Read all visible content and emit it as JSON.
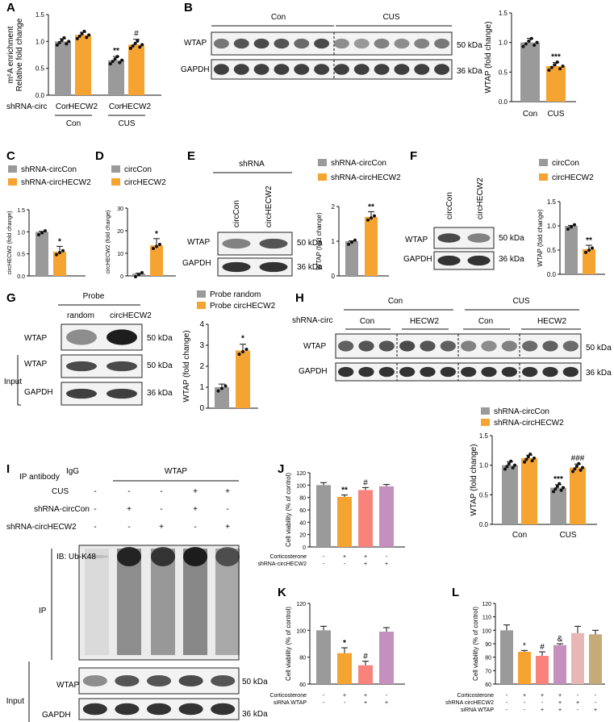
{
  "colors": {
    "grey": "#9a9a9a",
    "orange": "#f6a431",
    "salmon": "#f8837d",
    "purple": "#c58fbe",
    "pink": "#e7b7b6",
    "khaki": "#c4ab78"
  },
  "panels": {
    "A": {
      "letter": "A",
      "ylabel": "m⁶A enrichment\nRelative fold change",
      "row_label": "shRNA-circ",
      "bar_labels": [
        "Con",
        "HECW2",
        "Con",
        "HECW2"
      ],
      "group_labels": [
        "Con",
        "CUS"
      ],
      "sig": [
        "**",
        "#"
      ],
      "yticks": [
        "0.0",
        "0.5",
        "1.0",
        "1.5"
      ]
    },
    "B": {
      "letter": "B",
      "group_labels": [
        "Con",
        "CUS"
      ],
      "rows": [
        "WTAP",
        "GAPDH"
      ],
      "kda": [
        "50 kDa",
        "36 kDa"
      ],
      "ylabel": "WTAP (fold change)",
      "bar_labels": [
        "Con",
        "CUS"
      ],
      "sig": "***",
      "yticks": [
        "0.0",
        "0.5",
        "1.0",
        "1.5"
      ]
    },
    "C": {
      "letter": "C",
      "legend": [
        "shRNA-circCon",
        "shRNA-circHECW2"
      ],
      "ylabel": "circHECW2 (fold change)",
      "sig": "*",
      "yticks": [
        "0.0",
        "0.5",
        "1.0",
        "1.5"
      ]
    },
    "D": {
      "letter": "D",
      "legend": [
        "circCon",
        "circHECW2"
      ],
      "ylabel": "circHECW2 (fold change)",
      "sig": "*",
      "yticks": [
        "0",
        "10",
        "20",
        "30"
      ]
    },
    "E": {
      "letter": "E",
      "header": "shRNA",
      "lanes": [
        "circCon",
        "circHECW2"
      ],
      "rows": [
        "WTAP",
        "GAPDH"
      ],
      "kda": [
        "50 kDa",
        "36 kDa"
      ],
      "legend": [
        "shRNA-circCon",
        "shRNA-circHECW2"
      ],
      "ylabel": "WTAP (fold change)",
      "sig": "**",
      "yticks": [
        "0",
        "1",
        "2"
      ]
    },
    "F": {
      "letter": "F",
      "lanes": [
        "circCon",
        "circHECW2"
      ],
      "rows": [
        "WTAP",
        "GAPDH"
      ],
      "kda": [
        "50 kDa",
        "36 kDa"
      ],
      "legend": [
        "circCon",
        "circHECW2"
      ],
      "ylabel": "WTAP (fold change)",
      "sig": "**",
      "yticks": [
        "0.0",
        "0.5",
        "1.0",
        "1.5"
      ]
    },
    "G": {
      "letter": "G",
      "header": "Probe",
      "lanes": [
        "random",
        "circHECW2"
      ],
      "rows": [
        "WTAP",
        "WTAP",
        "GAPDH"
      ],
      "input_label": "Input",
      "kda": [
        "50 kDa",
        "50 kDa",
        "36 kDa"
      ],
      "legend": [
        "Probe random",
        "Probe circHECW2"
      ],
      "ylabel": "WTAP (fold change)",
      "sig": "*",
      "yticks": [
        "0",
        "1",
        "2",
        "3",
        "4"
      ]
    },
    "H": {
      "letter": "H",
      "row_label": "shRNA-circ",
      "group_labels": [
        "Con",
        "CUS"
      ],
      "lane_labels": [
        "Con",
        "HECW2",
        "Con",
        "HECW2"
      ],
      "rows": [
        "WTAP",
        "GAPDH"
      ],
      "kda": [
        "50 kDa",
        "36 kDa"
      ],
      "legend": [
        "shRNA-circCon",
        "shRNA-circHECW2"
      ],
      "ylabel": "WTAP (fold change)",
      "xlabels": [
        "Con",
        "CUS"
      ],
      "sig": [
        "***",
        "###"
      ],
      "yticks": [
        "0.0",
        "0.5",
        "1.0",
        "1.5"
      ]
    },
    "I": {
      "letter": "I",
      "ip_antibody": "IP antibody",
      "cols": [
        "IgG",
        "WTAP"
      ],
      "conditions": [
        {
          "label": "CUS",
          "signs": [
            "-",
            "-",
            "-",
            "+",
            "+"
          ]
        },
        {
          "label": "shRNA-circCon",
          "signs": [
            "-",
            "+",
            "-",
            "+",
            "-"
          ]
        },
        {
          "label": "shRNA-circHECW2",
          "signs": [
            "-",
            "-",
            "+",
            "-",
            "+"
          ]
        }
      ],
      "ib": "IB: Ub-K48",
      "ip": "IP",
      "input": "Input",
      "rows": [
        "WTAP",
        "GAPDH"
      ],
      "kda": [
        "50 kDa",
        "36 kDa"
      ]
    },
    "J": {
      "letter": "J",
      "ylabel": "Cell viability (% of control)",
      "yticks": [
        "0",
        "20",
        "40",
        "60",
        "80",
        "100",
        "120"
      ],
      "sig": [
        "**",
        "#"
      ],
      "treatments": [
        {
          "label": "Corticosterone",
          "signs": [
            "-",
            "+",
            "+",
            "-"
          ]
        },
        {
          "label": "shRNA-circHECW2",
          "signs": [
            "-",
            "-",
            "+",
            "+"
          ]
        }
      ]
    },
    "K": {
      "letter": "K",
      "ylabel": "Cell viability (% of control)",
      "yticks": [
        "60",
        "80",
        "100",
        "120"
      ],
      "sig": [
        "*",
        "#"
      ],
      "treatments": [
        {
          "label": "Corticosterone",
          "signs": [
            "-",
            "+",
            "+",
            "-"
          ]
        },
        {
          "label": "siRNA WTAP",
          "signs": [
            "-",
            "-",
            "+",
            "+"
          ]
        }
      ]
    },
    "L": {
      "letter": "L",
      "ylabel": "Cell viability (% of control)",
      "yticks": [
        "60",
        "70",
        "80",
        "90",
        "100",
        "110",
        "120"
      ],
      "sig": [
        "*",
        "#",
        "&"
      ],
      "treatments": [
        {
          "label": "Corticosterone",
          "signs": [
            "-",
            "+",
            "+",
            "+",
            "-",
            "-"
          ]
        },
        {
          "label": "shRNA circHECW2",
          "signs": [
            "-",
            "-",
            "-",
            "+",
            "+",
            "-"
          ]
        },
        {
          "label": "siRNA WTAP",
          "signs": [
            "-",
            "-",
            "+",
            "+",
            "-",
            "+"
          ]
        }
      ]
    }
  },
  "chart_data": [
    {
      "panel": "A",
      "type": "bar",
      "categories": [
        "Con",
        "HECW2",
        "Con",
        "HECW2"
      ],
      "values": [
        1.0,
        1.12,
        0.65,
        0.94
      ],
      "ylim": [
        0,
        1.5
      ]
    },
    {
      "panel": "B",
      "type": "bar",
      "categories": [
        "Con",
        "CUS"
      ],
      "values": [
        1.0,
        0.6
      ],
      "ylim": [
        0,
        1.5
      ]
    },
    {
      "panel": "C",
      "type": "bar",
      "values": [
        1.0,
        0.55
      ],
      "ylim": [
        0,
        1.5
      ]
    },
    {
      "panel": "D",
      "type": "bar",
      "values": [
        1.0,
        13.5
      ],
      "ylim": [
        0,
        30
      ]
    },
    {
      "panel": "E",
      "type": "bar",
      "values": [
        1.0,
        1.7
      ],
      "ylim": [
        0,
        2
      ]
    },
    {
      "panel": "F",
      "type": "bar",
      "values": [
        1.0,
        0.52
      ],
      "ylim": [
        0,
        1.5
      ]
    },
    {
      "panel": "G",
      "type": "bar",
      "values": [
        1.0,
        2.75
      ],
      "ylim": [
        0,
        4
      ]
    },
    {
      "panel": "H",
      "type": "bar",
      "categories": [
        "Con",
        "CUS"
      ],
      "series": [
        {
          "name": "shRNA-circCon",
          "values": [
            1.0,
            0.62
          ]
        },
        {
          "name": "shRNA-circHECW2",
          "values": [
            1.12,
            0.96
          ]
        }
      ],
      "ylim": [
        0,
        1.5
      ]
    },
    {
      "panel": "J",
      "type": "bar",
      "values": [
        100,
        81,
        92,
        98
      ],
      "ylim": [
        0,
        120
      ]
    },
    {
      "panel": "K",
      "type": "bar",
      "values": [
        100,
        83,
        74,
        99
      ],
      "ylim": [
        60,
        120
      ]
    },
    {
      "panel": "L",
      "type": "bar",
      "values": [
        100,
        84,
        81,
        89,
        98,
        97
      ],
      "ylim": [
        60,
        120
      ]
    }
  ]
}
